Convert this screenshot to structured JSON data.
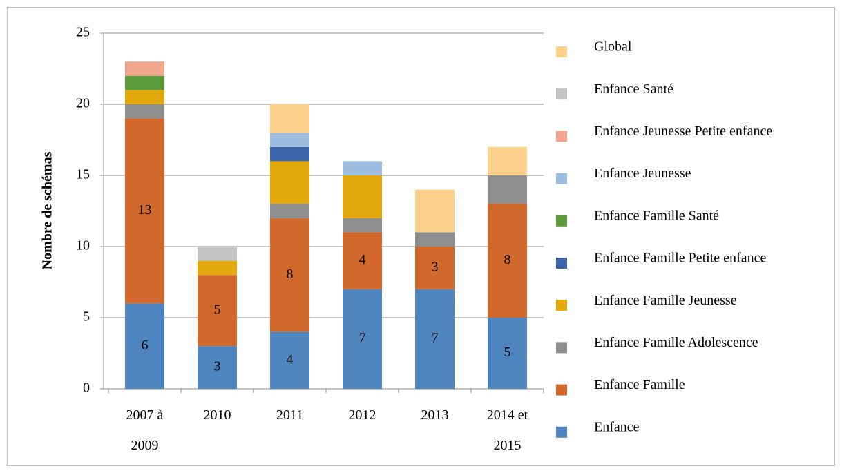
{
  "chart_data": {
    "type": "stacked_bar",
    "y_label": "Nombre de schémas",
    "categories": [
      "2007 à 2009",
      "2010",
      "2011",
      "2012",
      "2013",
      "2014 et 2015"
    ],
    "series": [
      {
        "name": "Enfance",
        "color": "#4f86bf",
        "values": [
          6,
          3,
          4,
          7,
          7,
          5
        ],
        "show_labels": true
      },
      {
        "name": "Enfance Famille",
        "color": "#d2692c",
        "values": [
          13,
          5,
          8,
          4,
          3,
          8
        ],
        "show_labels": true
      },
      {
        "name": "Enfance Famille Adolescence",
        "color": "#8e8e8e",
        "values": [
          1,
          0,
          1,
          1,
          1,
          2
        ]
      },
      {
        "name": "Enfance Famille Jeunesse",
        "color": "#e3a90c",
        "values": [
          1,
          1,
          3,
          3,
          0,
          0
        ]
      },
      {
        "name": "Enfance Famille Petite enfance",
        "color": "#3a63a9",
        "values": [
          0,
          0,
          1,
          0,
          0,
          0
        ]
      },
      {
        "name": "Enfance Famille Santé",
        "color": "#5c9a3e",
        "values": [
          1,
          0,
          0,
          0,
          0,
          0
        ]
      },
      {
        "name": "Enfance Jeunesse",
        "color": "#9dbde1",
        "values": [
          0,
          0,
          1,
          1,
          0,
          0
        ]
      },
      {
        "name": "Enfance Jeunesse Petite enfance",
        "color": "#f0a68a",
        "values": [
          1,
          0,
          0,
          0,
          0,
          0
        ]
      },
      {
        "name": "Enfance Santé",
        "color": "#c3c3c3",
        "values": [
          0,
          1,
          0,
          0,
          0,
          0
        ]
      },
      {
        "name": "Global",
        "color": "#fdd08c",
        "values": [
          0,
          0,
          2,
          0,
          3,
          2
        ]
      }
    ],
    "ylim": [
      0,
      25
    ],
    "yticks": [
      0,
      5,
      10,
      15,
      20,
      25
    ],
    "grid": true,
    "legend": "right"
  }
}
